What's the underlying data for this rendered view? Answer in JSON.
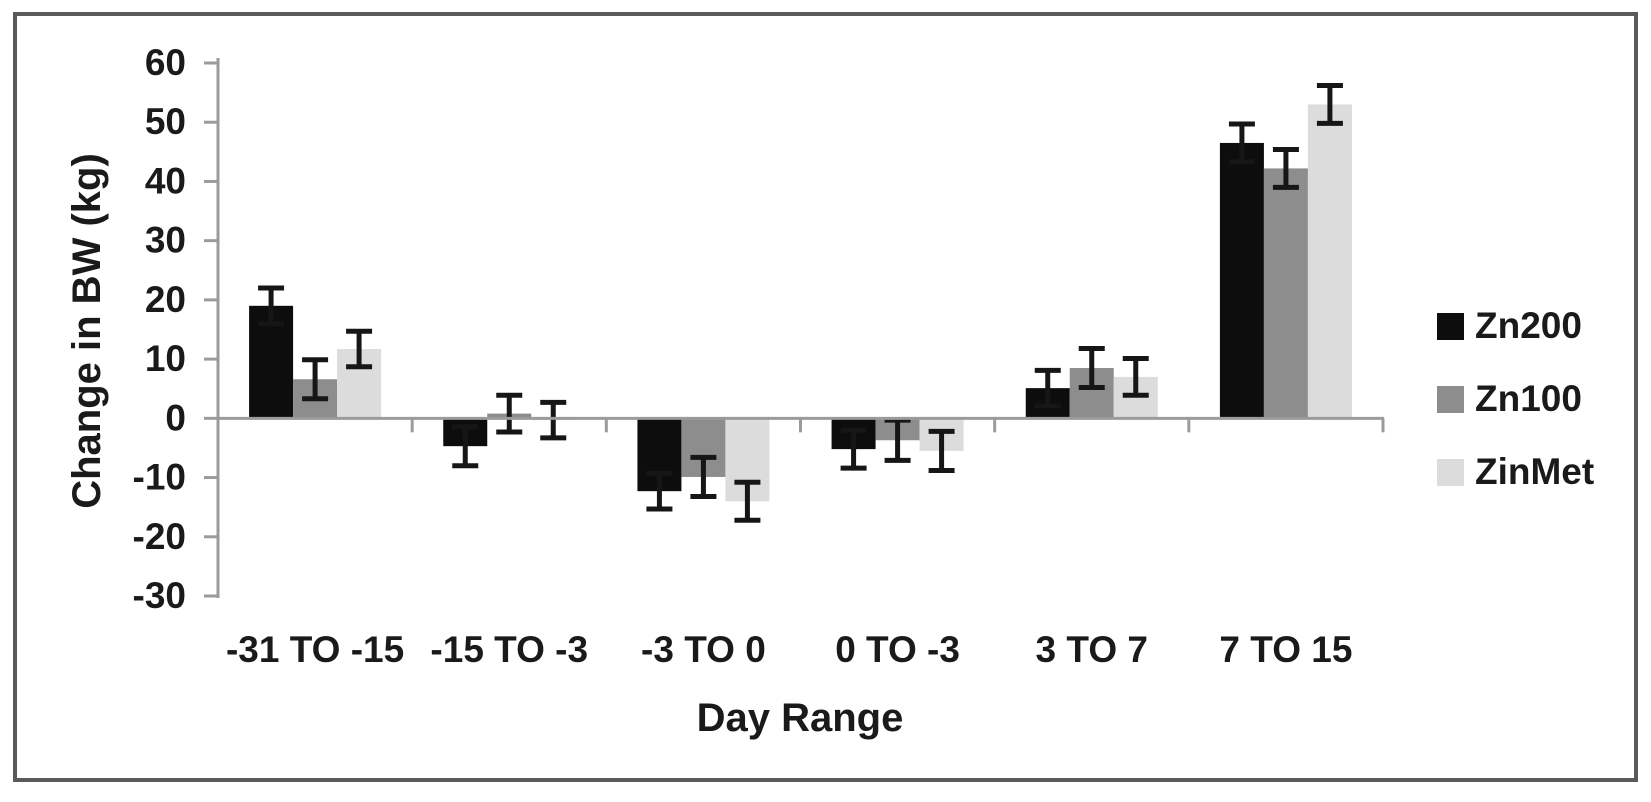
{
  "figure": {
    "background": "#ffffff",
    "border_color": "#5a5a5a",
    "axis_line_color": "#9b9b9b",
    "text_color": "#1a1a1a",
    "error_bar_color": "#161616"
  },
  "chart_data": {
    "type": "bar",
    "title": "",
    "xlabel": "Day Range",
    "ylabel": "Change in BW (kg)",
    "categories": [
      "-31 TO -15",
      "-15 TO -3",
      "-3 TO 0",
      "0 TO -3",
      "3 TO 7",
      "7 TO 15"
    ],
    "series": [
      {
        "name": "Zn200",
        "color": "#0d0d0d",
        "values": [
          19,
          -4.7,
          -12.3,
          -5.2,
          5.1,
          46.5
        ],
        "errors": [
          3.0,
          3.3,
          3.0,
          3.2,
          3.0,
          3.2
        ]
      },
      {
        "name": "Zn100",
        "color": "#8d8d8d",
        "values": [
          6.6,
          0.8,
          -9.9,
          -3.7,
          8.5,
          42.2
        ],
        "errors": [
          3.3,
          3.1,
          3.3,
          3.4,
          3.3,
          3.2
        ]
      },
      {
        "name": "ZinMet",
        "color": "#dcdcdc",
        "values": [
          11.7,
          -0.3,
          -14,
          -5.5,
          7,
          53
        ],
        "errors": [
          3.0,
          3.0,
          3.2,
          3.3,
          3.1,
          3.2
        ]
      }
    ],
    "ylim": [
      -30,
      60
    ],
    "yticks": [
      60,
      50,
      40,
      30,
      20,
      10,
      0,
      -10,
      -20,
      -30
    ],
    "grid": false,
    "legend_position": "right",
    "error_bars": true
  }
}
